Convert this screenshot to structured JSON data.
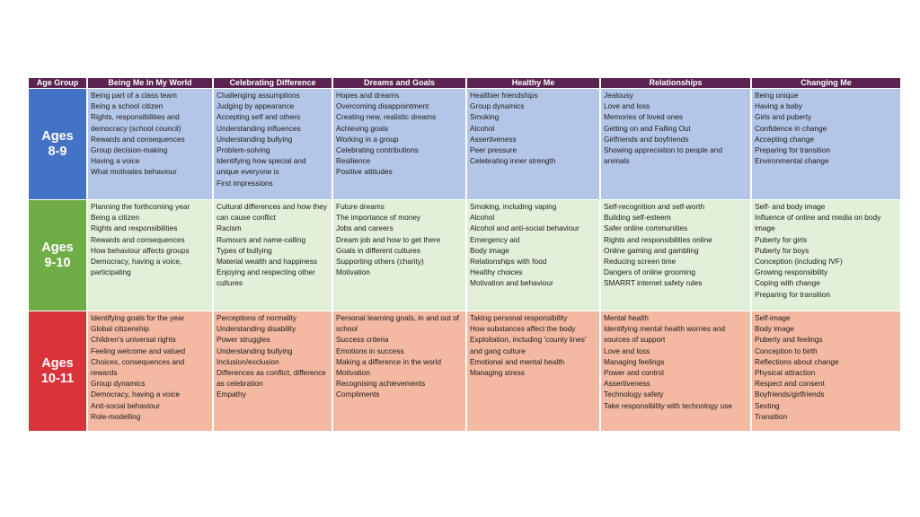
{
  "colors": {
    "header_bg": "#5a2350",
    "rows": [
      {
        "age_bg": "#4472c4",
        "cell_bg": "#b4c6e7"
      },
      {
        "age_bg": "#70ad47",
        "cell_bg": "#e2efd9"
      },
      {
        "age_bg": "#d9343a",
        "cell_bg": "#f4b9a2"
      }
    ]
  },
  "headers": [
    "Age Group",
    "Being Me In My World",
    "Celebrating Difference",
    "Dreams and Goals",
    "Healthy Me",
    "Relationships",
    "Changing Me"
  ],
  "rows": [
    {
      "age_line1": "Ages",
      "age_line2": "8-9",
      "cells": [
        [
          "Being part of a class team",
          "Being a school citizen",
          "Rights, responsibilities and democracy (school council)",
          "Rewards and consequences",
          "Group decision-making",
          "Having a voice",
          "What motivates behaviour"
        ],
        [
          "Challenging assumptions",
          "Judging by appearance",
          "Accepting self and others",
          "Understanding influences",
          "Understanding bullying",
          "Problem-solving",
          "Identifying how special and unique everyone is",
          "First impressions"
        ],
        [
          "Hopes and dreams",
          "Overcoming disappointment",
          "Creating new, realistic dreams",
          "Achieving goals",
          "Working in a group",
          "Celebrating contributions",
          "Resilience",
          "Positive attitudes"
        ],
        [
          "Healthier friendships",
          "Group dynamics",
          "Smoking",
          "Alcohol",
          "Assertiveness",
          "Peer pressure",
          "Celebrating inner strength"
        ],
        [
          "Jealousy",
          "Love and loss",
          "Memories of loved ones",
          "Getting on and Falling Out",
          "Girlfriends and boyfriends",
          "Showing appreciation to people and animals"
        ],
        [
          "Being unique",
          "Having a baby",
          "Girls and puberty",
          "Confidence in change",
          "Accepting change",
          "Preparing for transition",
          "Environmental change"
        ]
      ]
    },
    {
      "age_line1": "Ages",
      "age_line2": "9-10",
      "cells": [
        [
          "Planning the forthcoming year",
          "Being a citizen",
          "Rights and responsibilities",
          "Rewards and consequences",
          "How behaviour affects groups",
          "Democracy, having a voice, participating"
        ],
        [
          "Cultural differences and how they can cause conflict",
          "Racism",
          "Rumours and name-calling",
          "Types of bullying",
          "Material wealth and happiness",
          "Enjoying and respecting other cultures"
        ],
        [
          "Future dreams",
          "The importance of money",
          "Jobs and careers",
          "Dream job and how to get there",
          "Goals in different cultures",
          "Supporting others (charity)",
          "Motivation"
        ],
        [
          "Smoking, including vaping",
          "Alcohol",
          "Alcohol and anti-social behaviour",
          "Emergency aid",
          "Body image",
          "Relationships with food",
          "Healthy choices",
          "Motivation and behaviour"
        ],
        [
          "Self-recognition and self-worth",
          "Building self-esteem",
          "Safer online communities",
          "Rights and responsibilities online",
          "Online gaming and gambling",
          "Reducing screen time",
          "Dangers of online grooming",
          "SMARRT internet safety rules"
        ],
        [
          "Self- and body image",
          "Influence of online and media on body image",
          "Puberty for girls",
          "Puberty for boys",
          "Conception (including IVF)",
          "Growing responsibility",
          "Coping with change",
          "Preparing for transition"
        ]
      ]
    },
    {
      "age_line1": "Ages",
      "age_line2": "10-11",
      "cells": [
        [
          "Identifying goals for the year",
          "Global citizenship",
          "Children's universal rights",
          "Feeling welcome and valued",
          "Choices, consequences and rewards",
          "Group dynamics",
          "Democracy, having a voice",
          "Anti-social behaviour",
          "Role-modelling"
        ],
        [
          "Perceptions of normality",
          "Understanding disability",
          "Power struggles",
          "Understanding bullying",
          "Inclusion/exclusion",
          "Differences as conflict, difference as celebration",
          "Empathy"
        ],
        [
          "Personal learning goals, in and out of school",
          "Success criteria",
          "Emotions in success",
          "Making a difference in the world",
          "Motivation",
          "Recognising achievements",
          "Compliments"
        ],
        [
          "Taking personal responsibility",
          "How substances affect the body",
          "Exploitation, including 'county lines' and gang culture",
          "Emotional and mental health",
          "Managing stress"
        ],
        [
          "Mental health",
          "Identifying mental health worries and sources of support",
          "Love and loss",
          "Managing feelings",
          "Power and control",
          "Assertiveness",
          "Technology safety",
          "Take responsibility with technology use"
        ],
        [
          "Self-image",
          "Body image",
          "Puberty and feelings",
          "Conception to birth",
          "Reflections about change",
          "Physical attraction",
          "Respect and consent",
          "Boyfriends/girlfriends",
          "Sexting",
          "Transition"
        ]
      ]
    }
  ]
}
